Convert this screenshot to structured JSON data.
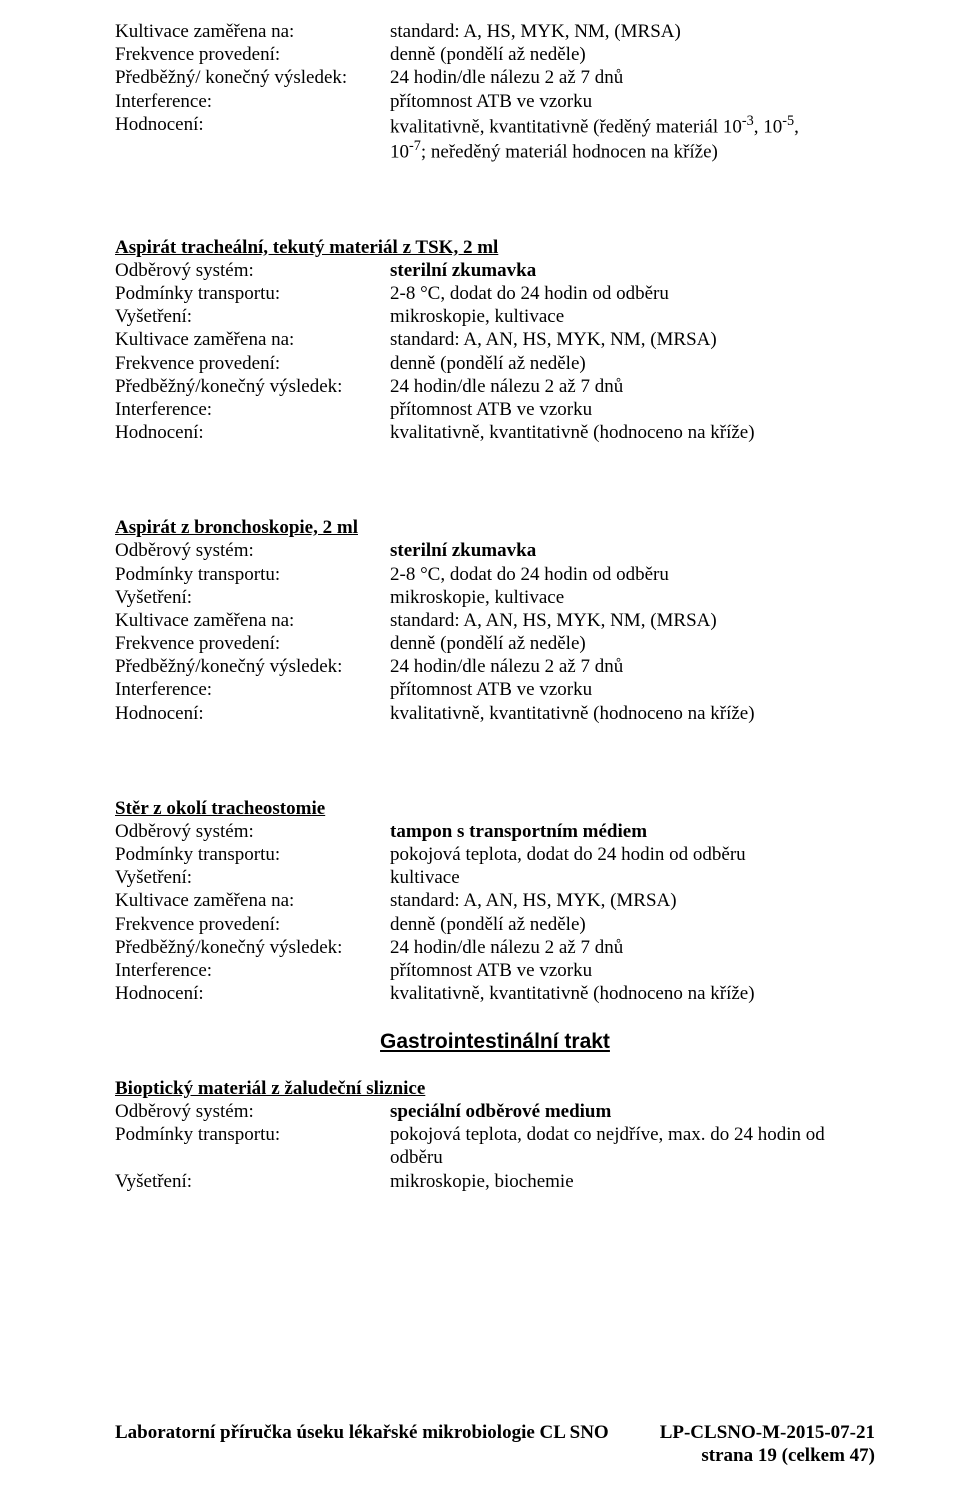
{
  "sec1": {
    "r1": {
      "l": "Kultivace zaměřena na:",
      "v": "standard: A, HS, MYK, NM, (MRSA)"
    },
    "r2": {
      "l": "Frekvence provedení:",
      "v": "denně (pondělí až neděle)"
    },
    "r3": {
      "l": "Předběžný/ konečný výsledek:",
      "v": "24 hodin/dle nálezu 2 až 7 dnů"
    },
    "r4": {
      "l": "Interference:",
      "v": "přítomnost ATB ve vzorku"
    },
    "r5l": "Hodnocení:",
    "r5a": "kvalitativně, kvantitativně (ředěný materiál 10",
    "r5b": ", 10",
    "r5c": ",",
    "r5d": "10",
    "r5e": "; neředěný materiál hodnocen na kříže)",
    "sup1": "-3",
    "sup2": "-5",
    "sup3": "-7"
  },
  "sec2": {
    "title": "Aspirát tracheální, tekutý materiál z TSK, 2 ml",
    "r1": {
      "l": "Odběrový systém:",
      "v": "sterilní zkumavka"
    },
    "r2": {
      "l": "Podmínky transportu:",
      "v": "2-8 °C, dodat do 24 hodin od odběru"
    },
    "r3": {
      "l": "Vyšetření:",
      "v": "mikroskopie, kultivace"
    },
    "r4": {
      "l": "Kultivace zaměřena na:",
      "v": "standard: A, AN, HS, MYK, NM, (MRSA)"
    },
    "r5": {
      "l": "Frekvence provedení:",
      "v": "denně (pondělí až neděle)"
    },
    "r6": {
      "l": "Předběžný/konečný výsledek:",
      "v": "24 hodin/dle nálezu 2 až 7 dnů"
    },
    "r7": {
      "l": "Interference:",
      "v": "přítomnost ATB ve vzorku"
    },
    "r8": {
      "l": "Hodnocení:",
      "v": "kvalitativně, kvantitativně (hodnoceno na kříže)"
    }
  },
  "sec3": {
    "title": "Aspirát z bronchoskopie, 2 ml",
    "r1": {
      "l": "Odběrový systém:",
      "v": "sterilní zkumavka"
    },
    "r2": {
      "l": "Podmínky transportu:",
      "v": "2-8 °C, dodat do 24 hodin od odběru"
    },
    "r3": {
      "l": "Vyšetření:",
      "v": "mikroskopie, kultivace"
    },
    "r4": {
      "l": "Kultivace zaměřena na:",
      "v": "standard: A, AN, HS, MYK, NM, (MRSA)"
    },
    "r5": {
      "l": "Frekvence provedení:",
      "v": "denně (pondělí až neděle)"
    },
    "r6": {
      "l": "Předběžný/konečný výsledek:",
      "v": "24 hodin/dle nálezu 2 až 7 dnů"
    },
    "r7": {
      "l": "Interference:",
      "v": "přítomnost ATB ve vzorku"
    },
    "r8": {
      "l": "Hodnocení:",
      "v": "kvalitativně, kvantitativně (hodnoceno na kříže)"
    }
  },
  "sec4": {
    "title": "Stěr z okolí tracheostomie",
    "r1": {
      "l": "Odběrový systém:",
      "v": "tampon s transportním médiem"
    },
    "r2": {
      "l": "Podmínky transportu:",
      "v": "pokojová teplota, dodat do 24 hodin od odběru"
    },
    "r3": {
      "l": "Vyšetření:",
      "v": "kultivace"
    },
    "r4": {
      "l": "Kultivace zaměřena na:",
      "v": "standard: A, AN, HS, MYK, (MRSA)"
    },
    "r5": {
      "l": "Frekvence provedení:",
      "v": "denně (pondělí až neděle)"
    },
    "r6": {
      "l": "Předběžný/konečný výsledek:",
      "v": "24 hodin/dle nálezu 2 až 7 dnů"
    },
    "r7": {
      "l": "Interference:",
      "v": "přítomnost ATB ve vzorku"
    },
    "r8": {
      "l": "Hodnocení:",
      "v": "kvalitativně, kvantitativně (hodnoceno na kříže)"
    }
  },
  "cat": "Gastrointestinální trakt",
  "sec5": {
    "title": "Bioptický materiál z žaludeční sliznice",
    "r1": {
      "l": "Odběrový systém:",
      "v": "speciální odběrové medium"
    },
    "r2": {
      "l": "Podmínky transportu:",
      "v": "pokojová teplota, dodat co nejdříve, max. do 24 hodin od odběru"
    },
    "r3": {
      "l": "Vyšetření:",
      "v": "mikroskopie, biochemie"
    }
  },
  "footer": {
    "left": "Laboratorní příručka úseku lékařské mikrobiologie CL SNO",
    "right1": "LP-CLSNO-M-2015-07-21",
    "right2": "strana 19 (celkem 47)"
  }
}
